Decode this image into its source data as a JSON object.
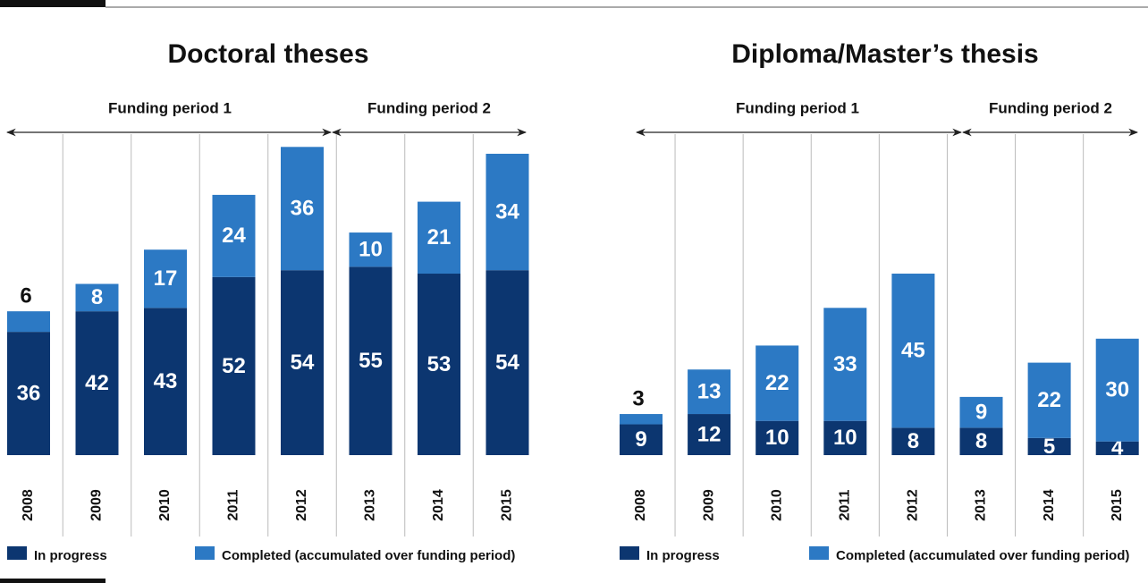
{
  "chart_data": [
    {
      "type": "bar",
      "stacked": true,
      "title": "Doctoral theses",
      "annotations": [
        "Funding period 1",
        "Funding period 2"
      ],
      "categories": [
        "2008",
        "2009",
        "2010",
        "2011",
        "2012",
        "2013",
        "2014",
        "2015"
      ],
      "series": [
        {
          "name": "In progress",
          "color": "#0c3670",
          "values": [
            36,
            42,
            43,
            52,
            54,
            55,
            53,
            54
          ]
        },
        {
          "name": "Completed (accumulated over funding period)",
          "color": "#2c79c4",
          "values": [
            6,
            8,
            17,
            24,
            36,
            10,
            21,
            34
          ]
        }
      ],
      "ylim": [
        0,
        100
      ]
    },
    {
      "type": "bar",
      "stacked": true,
      "title": "Diploma/Master’s thesis",
      "annotations": [
        "Funding period 1",
        "Funding period 2"
      ],
      "categories": [
        "2008",
        "2009",
        "2010",
        "2011",
        "2012",
        "2013",
        "2014",
        "2015"
      ],
      "series": [
        {
          "name": "In progress",
          "color": "#0c3670",
          "values": [
            9,
            12,
            10,
            10,
            8,
            8,
            5,
            4
          ]
        },
        {
          "name": "Completed (accumulated over funding period)",
          "color": "#2c79c4",
          "values": [
            3,
            13,
            22,
            33,
            45,
            9,
            22,
            30
          ]
        }
      ],
      "ylim": [
        0,
        100
      ]
    }
  ]
}
